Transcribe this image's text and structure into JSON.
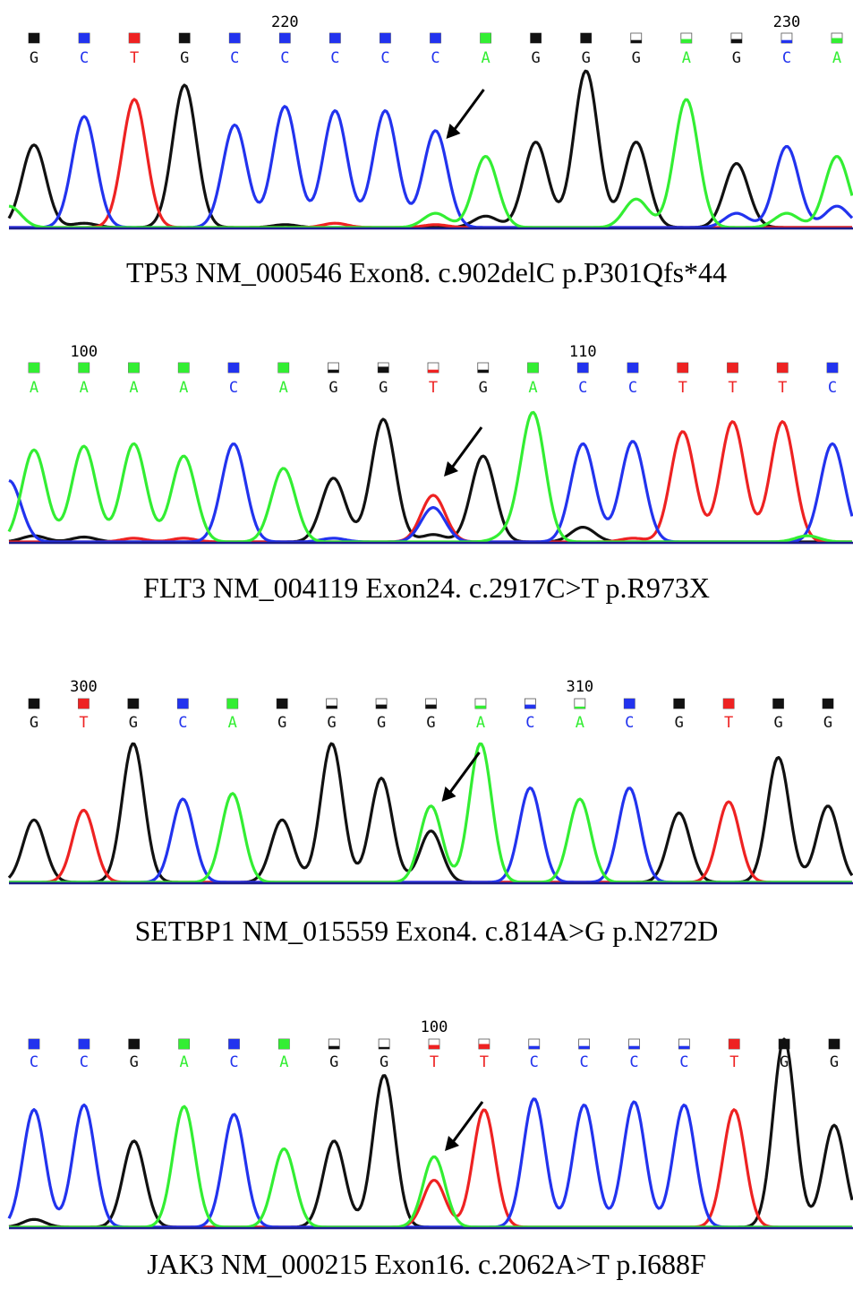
{
  "colors": {
    "A": "#33ee33",
    "C": "#2233ee",
    "G": "#111111",
    "T": "#ee2222",
    "baseline": "#1e1e8c"
  },
  "chart_data": [
    {
      "type": "line",
      "title": "TP53 NM_000546 Exon8. c.902delC p.P301Qfs*44",
      "position_labels": [
        {
          "index": 5,
          "text": "220"
        },
        {
          "index": 15,
          "text": "230"
        }
      ],
      "bases": [
        "G",
        "C",
        "T",
        "G",
        "C",
        "C",
        "C",
        "C",
        "C",
        "A",
        "G",
        "G",
        "G",
        "A",
        "G",
        "C",
        "A"
      ],
      "quality": [
        1,
        1,
        1,
        1,
        1,
        1,
        1,
        1,
        1,
        1,
        1,
        1,
        0.3,
        0.4,
        0.4,
        0.3,
        0.5
      ],
      "peaks": {
        "G": [
          [
            0,
            0.58
          ],
          [
            3,
            1.0
          ],
          [
            10,
            0.6
          ],
          [
            11,
            1.1
          ],
          [
            12,
            0.6
          ],
          [
            14,
            0.45
          ],
          [
            9,
            0.08
          ],
          [
            1,
            0.03
          ],
          [
            5,
            0.02
          ]
        ],
        "C": [
          [
            1,
            0.78
          ],
          [
            4,
            0.72
          ],
          [
            5,
            0.85
          ],
          [
            6,
            0.82
          ],
          [
            7,
            0.82
          ],
          [
            8,
            0.68
          ],
          [
            14,
            0.1
          ],
          [
            15,
            0.57
          ],
          [
            16,
            0.15
          ]
        ],
        "T": [
          [
            2,
            0.9
          ],
          [
            6,
            0.03
          ],
          [
            8,
            0.02
          ]
        ],
        "A": [
          [
            9,
            0.5
          ],
          [
            8,
            0.1
          ],
          [
            12,
            0.2
          ],
          [
            13,
            0.9
          ],
          [
            15,
            0.1
          ],
          [
            16,
            0.5
          ],
          [
            -0.5,
            0.15
          ]
        ]
      },
      "arrow_index": 8
    },
    {
      "type": "line",
      "title": "FLT3 NM_004119 Exon24. c.2917C>T p.R973X",
      "position_labels": [
        {
          "index": 1,
          "text": "100"
        },
        {
          "index": 11,
          "text": "110"
        }
      ],
      "bases": [
        "A",
        "A",
        "A",
        "A",
        "C",
        "A",
        "G",
        "G",
        "T",
        "G",
        "A",
        "C",
        "C",
        "T",
        "T",
        "T",
        "C"
      ],
      "quality": [
        1,
        1,
        1,
        1,
        1,
        1,
        0.3,
        0.6,
        0.3,
        0.3,
        1,
        1,
        1,
        1,
        1,
        1,
        1
      ],
      "peaks": {
        "A": [
          [
            0,
            0.75
          ],
          [
            1,
            0.78
          ],
          [
            2,
            0.8
          ],
          [
            3,
            0.7
          ],
          [
            5,
            0.6
          ],
          [
            10,
            1.05
          ],
          [
            9.5,
            0.06
          ],
          [
            15.5,
            0.05
          ]
        ],
        "C": [
          [
            -0.5,
            0.5
          ],
          [
            4,
            0.8
          ],
          [
            8,
            0.28
          ],
          [
            11,
            0.8
          ],
          [
            12,
            0.82
          ],
          [
            16,
            0.8
          ],
          [
            6,
            0.03
          ]
        ],
        "G": [
          [
            6,
            0.52
          ],
          [
            7,
            1.0
          ],
          [
            9,
            0.7
          ],
          [
            11,
            0.12
          ],
          [
            0,
            0.05
          ],
          [
            1,
            0.04
          ],
          [
            8,
            0.06
          ]
        ],
        "T": [
          [
            8,
            0.38
          ],
          [
            13,
            0.9
          ],
          [
            14,
            0.98
          ],
          [
            15,
            0.98
          ],
          [
            2,
            0.03
          ],
          [
            3,
            0.03
          ],
          [
            12,
            0.03
          ]
        ]
      },
      "arrow_index": 8
    },
    {
      "type": "line",
      "title": "SETBP1 NM_015559 Exon4. c.814A>G p.N272D",
      "position_labels": [
        {
          "index": 1,
          "text": "300"
        },
        {
          "index": 11,
          "text": "310"
        }
      ],
      "bases": [
        "G",
        "T",
        "G",
        "C",
        "A",
        "G",
        "G",
        "G",
        "G",
        "A",
        "C",
        "A",
        "C",
        "G",
        "T",
        "G",
        "G"
      ],
      "quality": [
        1,
        1,
        1,
        1,
        1,
        1,
        0.3,
        0.4,
        0.4,
        0.3,
        0.4,
        0.2,
        1,
        1,
        1,
        1,
        1
      ],
      "peaks": {
        "G": [
          [
            0,
            0.45
          ],
          [
            2,
            1.0
          ],
          [
            5,
            0.45
          ],
          [
            6,
            1.0
          ],
          [
            7,
            0.75
          ],
          [
            8,
            0.37
          ],
          [
            13,
            0.5
          ],
          [
            15,
            0.9
          ],
          [
            16,
            0.55
          ]
        ],
        "T": [
          [
            1,
            0.52
          ],
          [
            14,
            0.58
          ]
        ],
        "C": [
          [
            3,
            0.6
          ],
          [
            10,
            0.68
          ],
          [
            12,
            0.68
          ]
        ],
        "A": [
          [
            4,
            0.64
          ],
          [
            8,
            0.55
          ],
          [
            9,
            1.0
          ],
          [
            11,
            0.6
          ]
        ]
      },
      "arrow_index": 8
    },
    {
      "type": "line",
      "title": "JAK3 NM_000215 Exon16. c.2062A>T p.I688F",
      "position_labels": [
        {
          "index": 8,
          "text": "100"
        }
      ],
      "bases": [
        "C",
        "C",
        "G",
        "A",
        "C",
        "A",
        "G",
        "G",
        "T",
        "T",
        "C",
        "C",
        "C",
        "C",
        "T",
        "G",
        "G"
      ],
      "quality": [
        1,
        1,
        1,
        1,
        1,
        1,
        0.3,
        0.2,
        0.4,
        0.5,
        0.3,
        0.3,
        0.3,
        0.3,
        1,
        1,
        1
      ],
      "peaks": {
        "C": [
          [
            0,
            0.75
          ],
          [
            1,
            0.78
          ],
          [
            4,
            0.72
          ],
          [
            10,
            0.82
          ],
          [
            11,
            0.78
          ],
          [
            12,
            0.8
          ],
          [
            13,
            0.78
          ]
        ],
        "G": [
          [
            2,
            0.55
          ],
          [
            6,
            0.55
          ],
          [
            7,
            0.97
          ],
          [
            15,
            1.2
          ],
          [
            16,
            0.65
          ],
          [
            0,
            0.05
          ]
        ],
        "A": [
          [
            3,
            0.77
          ],
          [
            5,
            0.5
          ],
          [
            8,
            0.45
          ]
        ],
        "T": [
          [
            8,
            0.3
          ],
          [
            9,
            0.75
          ],
          [
            14,
            0.75
          ]
        ]
      },
      "arrow_index": 8
    }
  ]
}
